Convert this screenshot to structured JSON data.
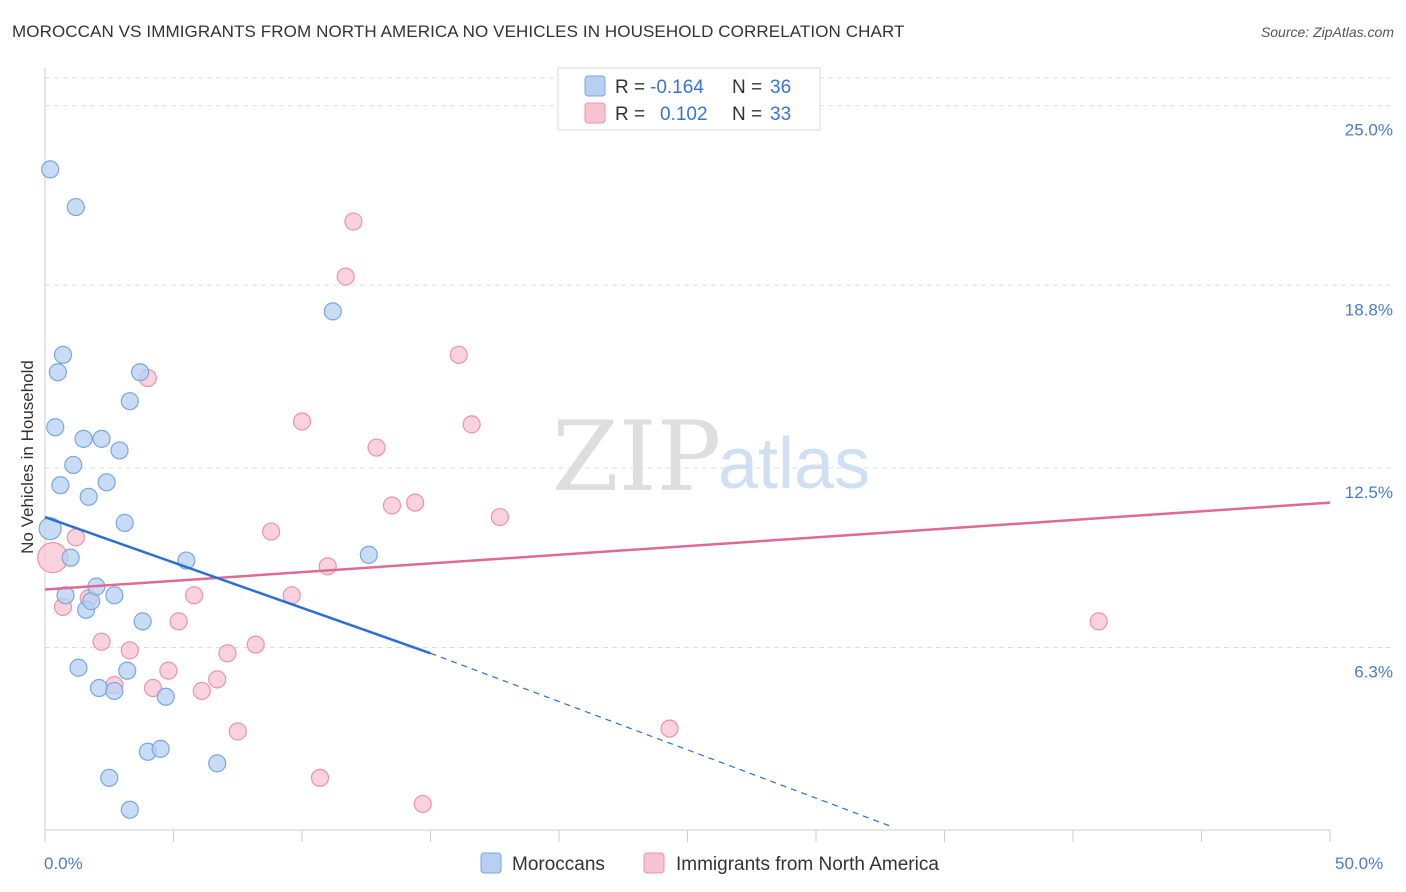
{
  "header": {
    "title": "MOROCCAN VS IMMIGRANTS FROM NORTH AMERICA NO VEHICLES IN HOUSEHOLD CORRELATION CHART",
    "source": "Source: ZipAtlas.com"
  },
  "watermark": {
    "zip": "ZIP",
    "atlas": "atlas"
  },
  "legend": {
    "rows": [
      {
        "r_label": "R = ",
        "r_value": "-0.164",
        "n_label": "N = ",
        "n_value": "36"
      },
      {
        "r_label": "R = ",
        "r_value": "0.102",
        "n_label": "N = ",
        "n_value": "33"
      }
    ]
  },
  "colors": {
    "series1_fill": "#b7d0f2",
    "series1_stroke": "#7aa6e0",
    "series1_line": "#2c6fd4",
    "series2_fill": "#f7c3d3",
    "series2_stroke": "#eb93ae",
    "series2_line": "#e06a93",
    "tick": "#4a7cc9",
    "grid": "#dddddd"
  },
  "chart_data": {
    "type": "scatter",
    "title": "MOROCCAN VS IMMIGRANTS FROM NORTH AMERICA NO VEHICLES IN HOUSEHOLD CORRELATION CHART",
    "xlabel": "",
    "ylabel": "No Vehicles in Household",
    "xlim": [
      0,
      50
    ],
    "ylim": [
      0,
      26.3
    ],
    "x_tick_labels": [
      "0.0%",
      "50.0%"
    ],
    "y_ticks": [
      6.3,
      12.5,
      18.8,
      25.0
    ],
    "y_tick_labels": [
      "6.3%",
      "12.5%",
      "18.8%",
      "25.0%"
    ],
    "series": [
      {
        "name": "Moroccans",
        "r": -0.164,
        "n": 36,
        "points": [
          [
            0.2,
            10.4
          ],
          [
            0.2,
            22.8
          ],
          [
            0.4,
            13.9
          ],
          [
            0.5,
            15.8
          ],
          [
            0.6,
            11.9
          ],
          [
            0.7,
            16.4
          ],
          [
            0.8,
            8.1
          ],
          [
            1.0,
            9.4
          ],
          [
            1.1,
            12.6
          ],
          [
            1.3,
            5.6
          ],
          [
            1.5,
            13.5
          ],
          [
            1.6,
            7.6
          ],
          [
            1.7,
            11.5
          ],
          [
            1.8,
            7.9
          ],
          [
            2.0,
            8.4
          ],
          [
            2.1,
            4.9
          ],
          [
            2.2,
            13.5
          ],
          [
            2.4,
            12.0
          ],
          [
            2.5,
            1.8
          ],
          [
            2.7,
            8.1
          ],
          [
            2.7,
            4.8
          ],
          [
            2.9,
            13.1
          ],
          [
            3.1,
            10.6
          ],
          [
            3.2,
            5.5
          ],
          [
            3.3,
            14.8
          ],
          [
            3.3,
            0.7
          ],
          [
            3.7,
            15.8
          ],
          [
            3.8,
            7.2
          ],
          [
            4.0,
            2.7
          ],
          [
            4.5,
            2.8
          ],
          [
            4.7,
            4.6
          ],
          [
            5.5,
            9.3
          ],
          [
            6.7,
            2.3
          ],
          [
            11.2,
            17.9
          ],
          [
            12.6,
            9.5
          ],
          [
            1.2,
            21.5
          ]
        ],
        "trend": {
          "x": [
            0,
            15
          ],
          "y": [
            10.8,
            6.1
          ]
        },
        "trend_extension": {
          "x": [
            15,
            33
          ],
          "y": [
            6.1,
            0.1
          ]
        }
      },
      {
        "name": "Immigrants from North America",
        "r": 0.102,
        "n": 33,
        "points": [
          [
            0.3,
            9.4
          ],
          [
            0.7,
            7.7
          ],
          [
            1.2,
            10.1
          ],
          [
            1.7,
            8.0
          ],
          [
            2.2,
            6.5
          ],
          [
            2.7,
            5.0
          ],
          [
            3.3,
            6.2
          ],
          [
            4.0,
            15.6
          ],
          [
            4.2,
            4.9
          ],
          [
            4.8,
            5.5
          ],
          [
            5.2,
            7.2
          ],
          [
            5.8,
            8.1
          ],
          [
            6.1,
            4.8
          ],
          [
            6.7,
            5.2
          ],
          [
            7.1,
            6.1
          ],
          [
            7.5,
            3.4
          ],
          [
            8.2,
            6.4
          ],
          [
            8.8,
            10.3
          ],
          [
            9.6,
            8.1
          ],
          [
            10.0,
            14.1
          ],
          [
            10.7,
            1.8
          ],
          [
            11.0,
            9.1
          ],
          [
            11.7,
            19.1
          ],
          [
            12.0,
            21.0
          ],
          [
            12.9,
            13.2
          ],
          [
            13.5,
            11.2
          ],
          [
            14.4,
            11.3
          ],
          [
            14.7,
            0.9
          ],
          [
            16.1,
            16.4
          ],
          [
            16.6,
            14.0
          ],
          [
            17.7,
            10.8
          ],
          [
            24.3,
            3.5
          ],
          [
            41.0,
            7.2
          ]
        ],
        "trend": {
          "x": [
            0,
            50
          ],
          "y": [
            8.3,
            11.3
          ]
        }
      }
    ]
  }
}
